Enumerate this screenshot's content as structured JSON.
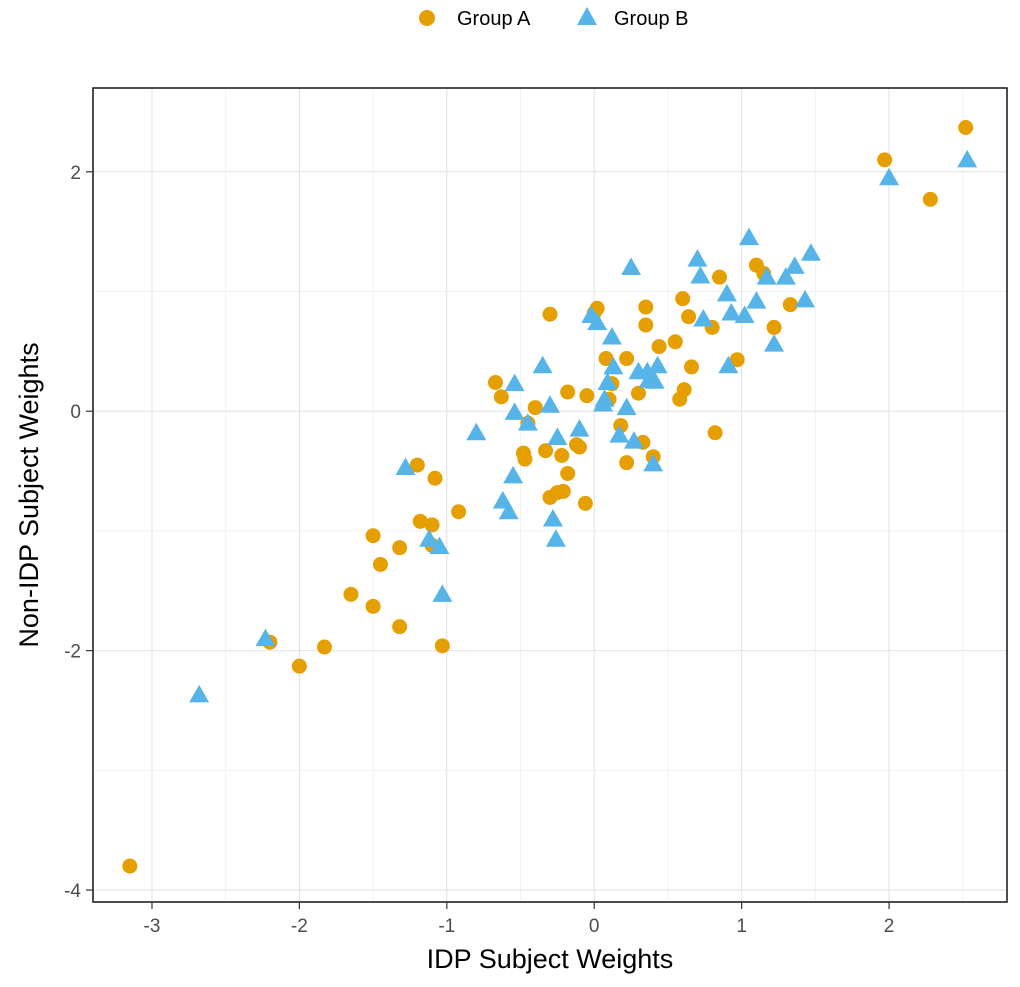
{
  "chart_data": {
    "type": "scatter",
    "xlabel": "IDP Subject Weights",
    "ylabel": "Non-IDP Subject Weights",
    "xlim": [
      -3.4,
      2.8
    ],
    "ylim": [
      -4.1,
      2.7
    ],
    "x_ticks": [
      -3,
      -2,
      -1,
      0,
      1,
      2
    ],
    "y_ticks": [
      -4,
      -2,
      0,
      2
    ],
    "x_tick_labels": [
      "-3",
      "-2",
      "-1",
      "0",
      "1",
      "2"
    ],
    "y_tick_labels": [
      "-4",
      "-2",
      "0",
      "2"
    ],
    "grid": true,
    "legend_position": "top",
    "series": [
      {
        "name": "Group A",
        "marker": "circle",
        "color": "#E69F00",
        "points": [
          [
            -3.15,
            -3.8
          ],
          [
            -2.2,
            -1.93
          ],
          [
            -2.0,
            -2.13
          ],
          [
            -1.83,
            -1.97
          ],
          [
            -1.65,
            -1.53
          ],
          [
            -1.5,
            -1.63
          ],
          [
            -1.45,
            -1.28
          ],
          [
            -1.32,
            -1.8
          ],
          [
            -1.32,
            -1.14
          ],
          [
            -1.5,
            -1.04
          ],
          [
            -1.2,
            -0.45
          ],
          [
            -1.18,
            -0.92
          ],
          [
            -1.1,
            -0.95
          ],
          [
            -1.1,
            -1.12
          ],
          [
            -1.08,
            -0.56
          ],
          [
            -1.03,
            -1.96
          ],
          [
            -0.92,
            -0.84
          ],
          [
            -0.67,
            0.24
          ],
          [
            -0.63,
            0.12
          ],
          [
            -0.48,
            -0.35
          ],
          [
            -0.47,
            -0.4
          ],
          [
            -0.45,
            -0.1
          ],
          [
            -0.4,
            0.03
          ],
          [
            -0.33,
            -0.33
          ],
          [
            -0.3,
            -0.72
          ],
          [
            -0.3,
            0.81
          ],
          [
            -0.25,
            -0.68
          ],
          [
            -0.21,
            -0.67
          ],
          [
            -0.22,
            -0.37
          ],
          [
            -0.18,
            -0.52
          ],
          [
            -0.18,
            0.16
          ],
          [
            -0.12,
            -0.28
          ],
          [
            -0.1,
            -0.3
          ],
          [
            -0.06,
            -0.77
          ],
          [
            -0.05,
            0.13
          ],
          [
            0.0,
            0.82
          ],
          [
            0.02,
            0.86
          ],
          [
            0.08,
            0.44
          ],
          [
            0.12,
            0.23
          ],
          [
            0.1,
            0.1
          ],
          [
            0.18,
            -0.12
          ],
          [
            0.22,
            -0.43
          ],
          [
            0.22,
            0.44
          ],
          [
            0.3,
            0.15
          ],
          [
            0.33,
            -0.26
          ],
          [
            0.35,
            0.87
          ],
          [
            0.35,
            0.72
          ],
          [
            0.4,
            -0.38
          ],
          [
            0.44,
            0.54
          ],
          [
            0.55,
            0.58
          ],
          [
            0.58,
            0.1
          ],
          [
            0.61,
            0.18
          ],
          [
            0.6,
            0.94
          ],
          [
            0.64,
            0.79
          ],
          [
            0.66,
            0.37
          ],
          [
            0.8,
            0.7
          ],
          [
            0.82,
            -0.18
          ],
          [
            0.85,
            1.12
          ],
          [
            0.97,
            0.43
          ],
          [
            1.1,
            1.22
          ],
          [
            1.15,
            1.15
          ],
          [
            1.22,
            0.7
          ],
          [
            1.33,
            0.89
          ],
          [
            1.97,
            2.1
          ],
          [
            2.28,
            1.77
          ],
          [
            2.52,
            2.37
          ]
        ]
      },
      {
        "name": "Group B",
        "marker": "triangle",
        "color": "#56B4E9",
        "points": [
          [
            -2.68,
            -2.37
          ],
          [
            -2.23,
            -1.9
          ],
          [
            -1.28,
            -0.47
          ],
          [
            -1.12,
            -1.07
          ],
          [
            -1.05,
            -1.13
          ],
          [
            -1.03,
            -1.53
          ],
          [
            -0.8,
            -0.18
          ],
          [
            -0.62,
            -0.75
          ],
          [
            -0.58,
            -0.84
          ],
          [
            -0.55,
            -0.54
          ],
          [
            -0.54,
            0.23
          ],
          [
            -0.54,
            -0.01
          ],
          [
            -0.45,
            -0.1
          ],
          [
            -0.35,
            0.38
          ],
          [
            -0.3,
            0.05
          ],
          [
            -0.28,
            -0.9
          ],
          [
            -0.26,
            -1.07
          ],
          [
            -0.25,
            -0.22
          ],
          [
            -0.1,
            -0.15
          ],
          [
            -0.02,
            0.8
          ],
          [
            0.02,
            0.74
          ],
          [
            0.06,
            0.06
          ],
          [
            0.07,
            0.1
          ],
          [
            0.09,
            0.24
          ],
          [
            0.12,
            0.62
          ],
          [
            0.13,
            0.37
          ],
          [
            0.17,
            -0.2
          ],
          [
            0.22,
            0.03
          ],
          [
            0.25,
            1.2
          ],
          [
            0.27,
            -0.25
          ],
          [
            0.3,
            0.33
          ],
          [
            0.36,
            0.33
          ],
          [
            0.37,
            0.26
          ],
          [
            0.4,
            -0.44
          ],
          [
            0.41,
            0.25
          ],
          [
            0.43,
            0.38
          ],
          [
            0.7,
            1.27
          ],
          [
            0.72,
            1.13
          ],
          [
            0.74,
            0.77
          ],
          [
            0.9,
            0.98
          ],
          [
            0.91,
            0.38
          ],
          [
            0.93,
            0.82
          ],
          [
            1.02,
            0.8
          ],
          [
            1.05,
            1.45
          ],
          [
            1.1,
            0.92
          ],
          [
            1.17,
            1.12
          ],
          [
            1.22,
            0.56
          ],
          [
            1.3,
            1.12
          ],
          [
            1.36,
            1.21
          ],
          [
            1.43,
            0.93
          ],
          [
            1.47,
            1.32
          ],
          [
            2.0,
            1.95
          ],
          [
            2.53,
            2.1
          ]
        ]
      }
    ]
  }
}
